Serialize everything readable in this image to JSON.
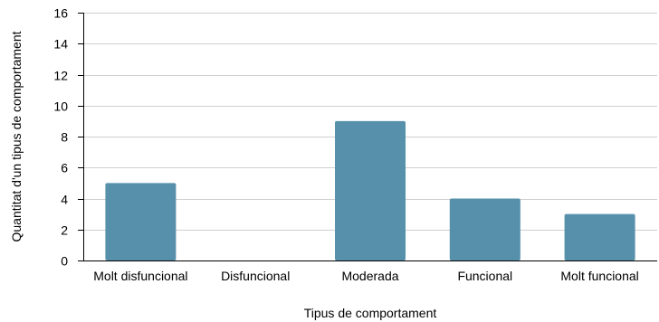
{
  "chart_data": {
    "type": "bar",
    "categories": [
      "Molt disfuncional",
      "Disfuncional",
      "Moderada",
      "Funcional",
      "Molt funcional"
    ],
    "values": [
      5,
      0,
      9,
      4,
      3
    ],
    "xlabel": "Tipus de comportament",
    "ylabel": "Quantitat d'un tipus de comportament",
    "ylim": [
      0,
      16
    ],
    "yticks": [
      0,
      2,
      4,
      6,
      8,
      10,
      12,
      14,
      16
    ],
    "grid": true,
    "bar_color": "#5790ab"
  }
}
